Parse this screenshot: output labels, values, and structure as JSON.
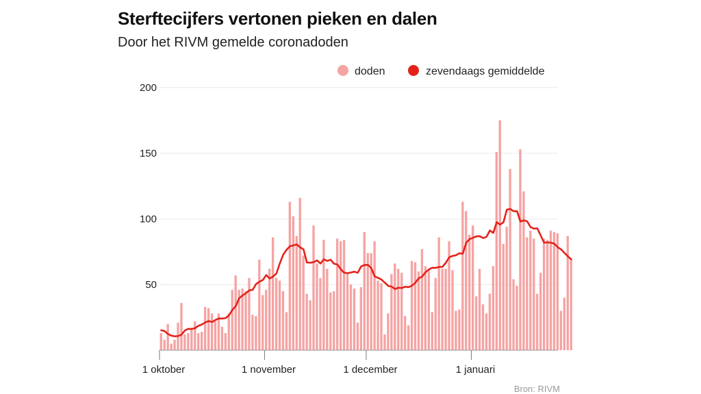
{
  "title": "Sterftecijfers vertonen pieken en dalen",
  "subtitle": "Door het RIVM gemelde coronadoden",
  "source": "Bron: RIVM",
  "colors": {
    "bars": "#f5a3a3",
    "line": "#e3231b",
    "grid": "#e8e8e8",
    "axis": "#999999"
  },
  "chart_data": {
    "type": "bar",
    "title": "Sterftecijfers vertonen pieken en dalen",
    "subtitle": "Door het RIVM gemelde coronadoden",
    "x_axis": {
      "type": "date",
      "start": "1 oktober",
      "tick_labels": [
        "1 oktober",
        "1 november",
        "1 december",
        "1 januari"
      ]
    },
    "ylim": [
      0,
      200
    ],
    "yticks": [
      50,
      100,
      150,
      200
    ],
    "grid": true,
    "legend": {
      "position": "top-right",
      "entries": [
        {
          "label": "doden",
          "color": "#f5a3a3",
          "marker": "circle"
        },
        {
          "label": "zevendaags gemiddelde",
          "color": "#e3231b",
          "marker": "circle"
        }
      ]
    },
    "series": [
      {
        "name": "doden",
        "type": "bar",
        "values": [
          13,
          8,
          20,
          5,
          8,
          21,
          36,
          12,
          13,
          17,
          22,
          13,
          14,
          33,
          32,
          28,
          22,
          28,
          18,
          13,
          28,
          46,
          57,
          46,
          47,
          45,
          55,
          27,
          26,
          69,
          42,
          46,
          62,
          86,
          55,
          53,
          45,
          29,
          113,
          102,
          87,
          116,
          72,
          43,
          38,
          95,
          66,
          55,
          84,
          62,
          44,
          45,
          85,
          83,
          84,
          58,
          50,
          47,
          21,
          48,
          90,
          74,
          74,
          83,
          53,
          51,
          12,
          28,
          58,
          66,
          62,
          59,
          26,
          19,
          68,
          67,
          60,
          77,
          64,
          62,
          29,
          55,
          86,
          62,
          62,
          83,
          61,
          30,
          31,
          113,
          106,
          88,
          95,
          41,
          62,
          35,
          28,
          43,
          64,
          151,
          175,
          81,
          94,
          138,
          54,
          49,
          153,
          121,
          86,
          91,
          85,
          43,
          59,
          85,
          84,
          91,
          90,
          89,
          30,
          40,
          87,
          69
        ]
      },
      {
        "name": "zevendaags gemiddelde",
        "type": "line",
        "values": [
          15.2,
          14.6,
          12.3,
          11.1,
          10.6,
          10.8,
          11.9,
          15.1,
          16.3,
          16.2,
          16.8,
          18.6,
          19.6,
          21.2,
          22.2,
          21.5,
          23.0,
          24.2,
          24.1,
          24.5,
          26.6,
          30.7,
          33.6,
          39.6,
          41.7,
          43.4,
          45.6,
          46.0,
          50.4,
          52.2,
          53.5,
          57.2,
          54.6,
          56.1,
          58.4,
          66.1,
          72.7,
          76.5,
          79.2,
          79.8,
          80.6,
          78.3,
          76.8,
          66.8,
          66.6,
          67.1,
          68.4,
          66.0,
          69.2,
          68.0,
          68.9,
          65.9,
          65.3,
          61.7,
          59.0,
          58.7,
          59.2,
          59.8,
          59.0,
          63.8,
          64.9,
          65.0,
          62.5,
          56.2,
          55.1,
          53.8,
          51.4,
          48.9,
          48.5,
          46.6,
          47.6,
          47.4,
          48.3,
          48.0,
          49.1,
          51.4,
          54.8,
          56.0,
          59.4,
          61.5,
          62.8,
          62.7,
          63.4,
          63.5,
          66.6,
          70.8,
          71.8,
          72.3,
          73.8,
          73.5,
          81.8,
          84.6,
          85.6,
          86.7,
          86.8,
          85.4,
          86.3,
          91.2,
          89.3,
          97.5,
          95.7,
          97.4,
          107.0,
          107.6,
          105.8,
          105.9,
          98.0,
          98.9,
          98.1,
          93.7,
          92.6,
          92.8,
          87.3,
          81.9,
          82.1,
          81.9,
          81.1,
          78.5,
          76.8,
          74.1,
          71.5,
          69.2
        ]
      }
    ]
  }
}
